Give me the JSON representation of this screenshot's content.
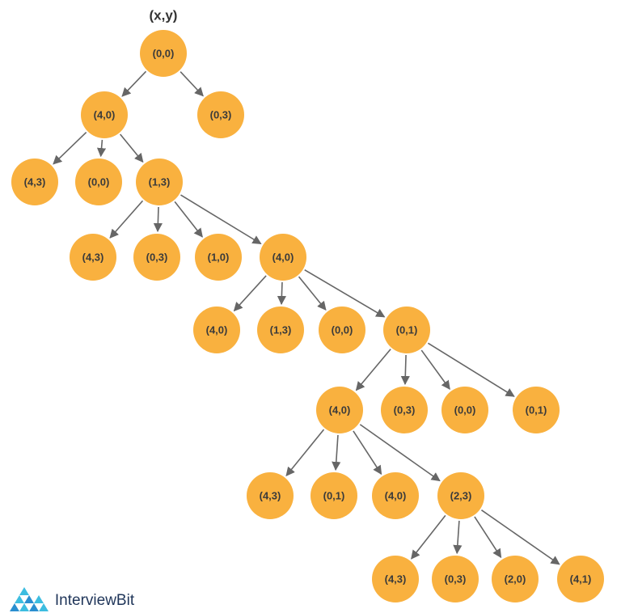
{
  "header": {
    "title": "(x,y)"
  },
  "nodes": [
    {
      "label": "(0,0)"
    },
    {
      "label": "(4,0)"
    },
    {
      "label": "(0,3)"
    },
    {
      "label": "(4,3)"
    },
    {
      "label": "(0,0)"
    },
    {
      "label": "(1,3)"
    },
    {
      "label": "(4,3)"
    },
    {
      "label": "(0,3)"
    },
    {
      "label": "(1,0)"
    },
    {
      "label": "(4,0)"
    },
    {
      "label": "(4,0)"
    },
    {
      "label": "(1,3)"
    },
    {
      "label": "(0,0)"
    },
    {
      "label": "(0,1)"
    },
    {
      "label": "(4,0)"
    },
    {
      "label": "(0,3)"
    },
    {
      "label": "(0,0)"
    },
    {
      "label": "(0,1)"
    },
    {
      "label": "(4,3)"
    },
    {
      "label": "(0,1)"
    },
    {
      "label": "(4,0)"
    },
    {
      "label": "(2,3)"
    },
    {
      "label": "(4,3)"
    },
    {
      "label": "(0,3)"
    },
    {
      "label": "(2,0)"
    },
    {
      "label": "(4,1)"
    }
  ],
  "logo": {
    "text": "InterviewBit"
  }
}
